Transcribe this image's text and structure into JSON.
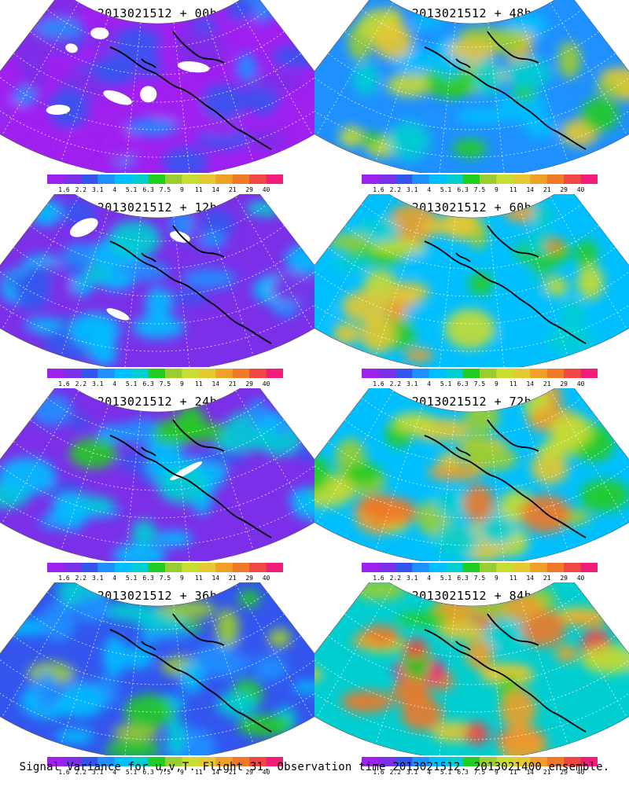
{
  "panels": [
    {
      "title": "2013021512 + 00h",
      "fill_level": 0.12
    },
    {
      "title": "2013021512 + 48h",
      "fill_level": 0.62
    },
    {
      "title": "2013021512 + 12h",
      "fill_level": 0.25
    },
    {
      "title": "2013021512 + 60h",
      "fill_level": 0.68
    },
    {
      "title": "2013021512 + 24h",
      "fill_level": 0.35
    },
    {
      "title": "2013021512 + 72h",
      "fill_level": 0.78
    },
    {
      "title": "2013021512 + 36h",
      "fill_level": 0.45
    },
    {
      "title": "2013021512 + 84h",
      "fill_level": 0.85
    }
  ],
  "colorbar": {
    "labels": [
      "1.6",
      "2.2",
      "3.1",
      "4",
      "5.1",
      "6.3",
      "7.5",
      "9",
      "11",
      "14",
      "21",
      "29",
      "40"
    ],
    "colors": [
      "#a020f0",
      "#7b2fe8",
      "#3355ee",
      "#1e90ff",
      "#00bfff",
      "#00ced1",
      "#22cc22",
      "#9acd32",
      "#c8dc32",
      "#e6c832",
      "#f0a028",
      "#f07828",
      "#f04646",
      "#f01e78"
    ]
  },
  "footer": "Signal Variance for u,v,T. Flight 31. Observation time 2013021512. 2013021400 ensemble.",
  "chart_data": {
    "type": "heatmap",
    "title": "Signal Variance for u,v,T. Flight 31. Observation time 2013021512. 2013021400 ensemble.",
    "panels": [
      "2013021512 + 00h",
      "2013021512 + 12h",
      "2013021512 + 24h",
      "2013021512 + 36h",
      "2013021512 + 48h",
      "2013021512 + 60h",
      "2013021512 + 72h",
      "2013021512 + 84h"
    ],
    "colorbar_levels": [
      1.6,
      2.2,
      3.1,
      4,
      5.1,
      6.3,
      7.5,
      9,
      11,
      14,
      21,
      29,
      40
    ]
  }
}
